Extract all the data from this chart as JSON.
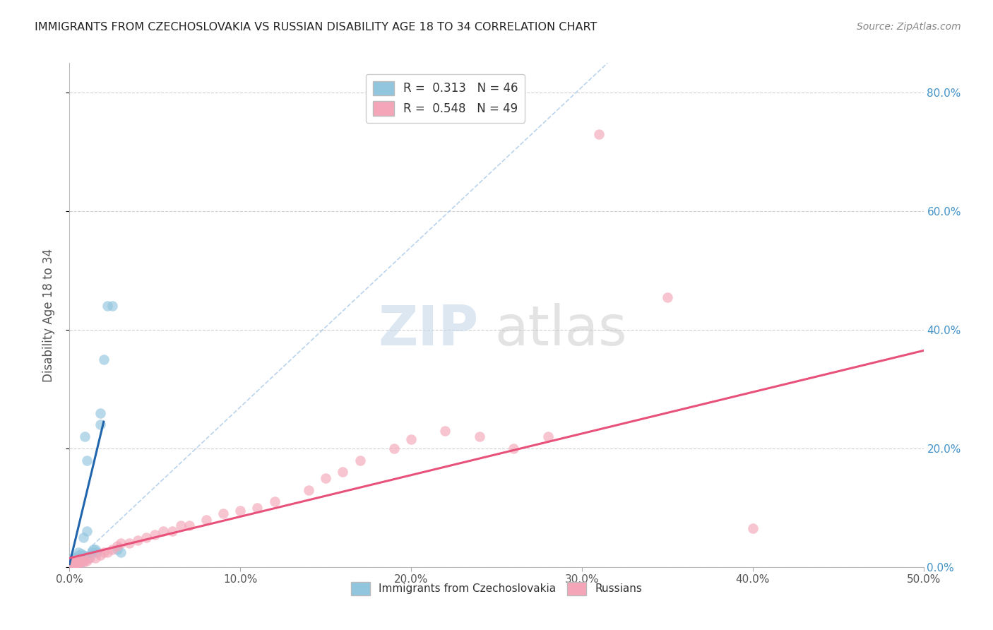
{
  "title": "IMMIGRANTS FROM CZECHOSLOVAKIA VS RUSSIAN DISABILITY AGE 18 TO 34 CORRELATION CHART",
  "source": "Source: ZipAtlas.com",
  "ylabel": "Disability Age 18 to 34",
  "xlim": [
    0.0,
    0.5
  ],
  "ylim": [
    0.0,
    0.85
  ],
  "xticks": [
    0.0,
    0.1,
    0.2,
    0.3,
    0.4,
    0.5
  ],
  "xticklabels": [
    "0.0%",
    "10.0%",
    "20.0%",
    "30.0%",
    "40.0%",
    "50.0%"
  ],
  "yticks_right": [
    0.0,
    0.2,
    0.4,
    0.6,
    0.8
  ],
  "ytick_labels_right": [
    "0.0%",
    "20.0%",
    "40.0%",
    "60.0%",
    "80.0%"
  ],
  "blue_color": "#92c5de",
  "pink_color": "#f4a6b8",
  "blue_line_color": "#2166ac",
  "pink_line_color": "#e8527a",
  "ref_line_color": "#a8c8e8",
  "blue_scatter_x": [
    0.001,
    0.001,
    0.002,
    0.002,
    0.002,
    0.003,
    0.003,
    0.003,
    0.003,
    0.003,
    0.004,
    0.004,
    0.004,
    0.004,
    0.005,
    0.005,
    0.005,
    0.005,
    0.005,
    0.006,
    0.006,
    0.006,
    0.006,
    0.007,
    0.007,
    0.007,
    0.008,
    0.008,
    0.008,
    0.009,
    0.009,
    0.01,
    0.01,
    0.011,
    0.012,
    0.013,
    0.014,
    0.015,
    0.016,
    0.018,
    0.018,
    0.02,
    0.022,
    0.025,
    0.028,
    0.03
  ],
  "blue_scatter_y": [
    0.005,
    0.01,
    0.005,
    0.01,
    0.015,
    0.005,
    0.008,
    0.01,
    0.012,
    0.015,
    0.005,
    0.008,
    0.01,
    0.015,
    0.005,
    0.008,
    0.01,
    0.02,
    0.025,
    0.005,
    0.008,
    0.012,
    0.018,
    0.01,
    0.015,
    0.022,
    0.015,
    0.02,
    0.05,
    0.018,
    0.22,
    0.06,
    0.18,
    0.015,
    0.02,
    0.025,
    0.03,
    0.03,
    0.025,
    0.24,
    0.26,
    0.35,
    0.44,
    0.44,
    0.03,
    0.025
  ],
  "pink_scatter_x": [
    0.001,
    0.001,
    0.002,
    0.002,
    0.003,
    0.003,
    0.004,
    0.004,
    0.005,
    0.005,
    0.006,
    0.007,
    0.008,
    0.009,
    0.01,
    0.012,
    0.015,
    0.018,
    0.02,
    0.022,
    0.025,
    0.028,
    0.03,
    0.035,
    0.04,
    0.045,
    0.05,
    0.055,
    0.06,
    0.065,
    0.07,
    0.08,
    0.09,
    0.1,
    0.11,
    0.12,
    0.14,
    0.15,
    0.16,
    0.17,
    0.19,
    0.2,
    0.22,
    0.24,
    0.26,
    0.28,
    0.31,
    0.35,
    0.4
  ],
  "pink_scatter_y": [
    0.005,
    0.008,
    0.005,
    0.01,
    0.005,
    0.008,
    0.005,
    0.01,
    0.005,
    0.012,
    0.008,
    0.01,
    0.008,
    0.012,
    0.01,
    0.015,
    0.015,
    0.02,
    0.025,
    0.025,
    0.03,
    0.035,
    0.04,
    0.04,
    0.045,
    0.05,
    0.055,
    0.06,
    0.06,
    0.07,
    0.07,
    0.08,
    0.09,
    0.095,
    0.1,
    0.11,
    0.13,
    0.15,
    0.16,
    0.18,
    0.2,
    0.215,
    0.23,
    0.22,
    0.2,
    0.22,
    0.73,
    0.455,
    0.065
  ],
  "blue_trend_x": [
    0.0,
    0.02
  ],
  "blue_trend_y": [
    0.005,
    0.245
  ],
  "pink_trend_x": [
    0.0,
    0.5
  ],
  "pink_trend_y": [
    0.015,
    0.365
  ],
  "ref_line_x": [
    0.0,
    0.315
  ],
  "ref_line_y": [
    0.0,
    0.85
  ]
}
